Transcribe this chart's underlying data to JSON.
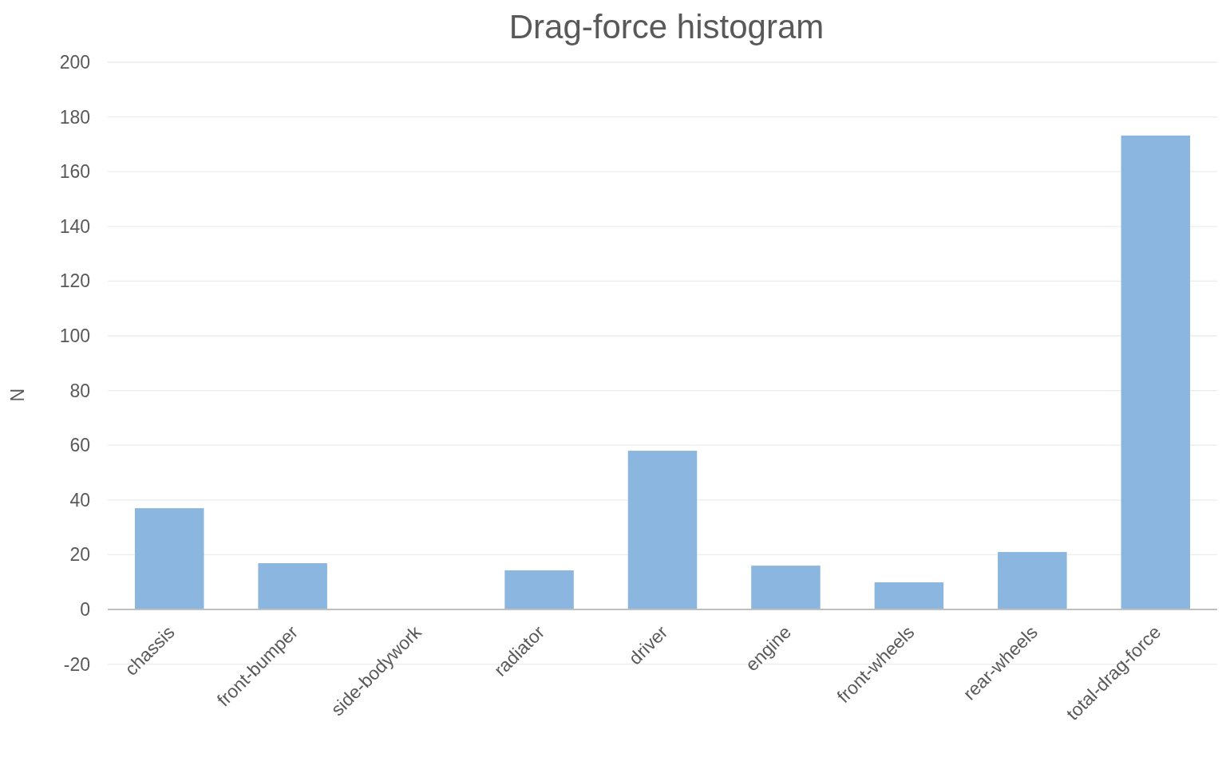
{
  "chart_data": {
    "type": "bar",
    "title": "Drag-force histogram",
    "ylabel": "N",
    "categories": [
      "chassis",
      "front-bumper",
      "side-bodywork",
      "radiator",
      "driver",
      "engine",
      "front-wheels",
      "rear-wheels",
      "total-drag-force"
    ],
    "values": [
      37,
      16.9,
      0,
      14.3,
      58,
      16,
      9.9,
      21,
      173.2
    ],
    "color": "#8bb6e0",
    "ylim": [
      -20,
      200
    ],
    "yticks": [
      -20,
      0,
      20,
      40,
      60,
      80,
      100,
      120,
      140,
      160,
      180,
      200
    ],
    "grid": "y"
  }
}
